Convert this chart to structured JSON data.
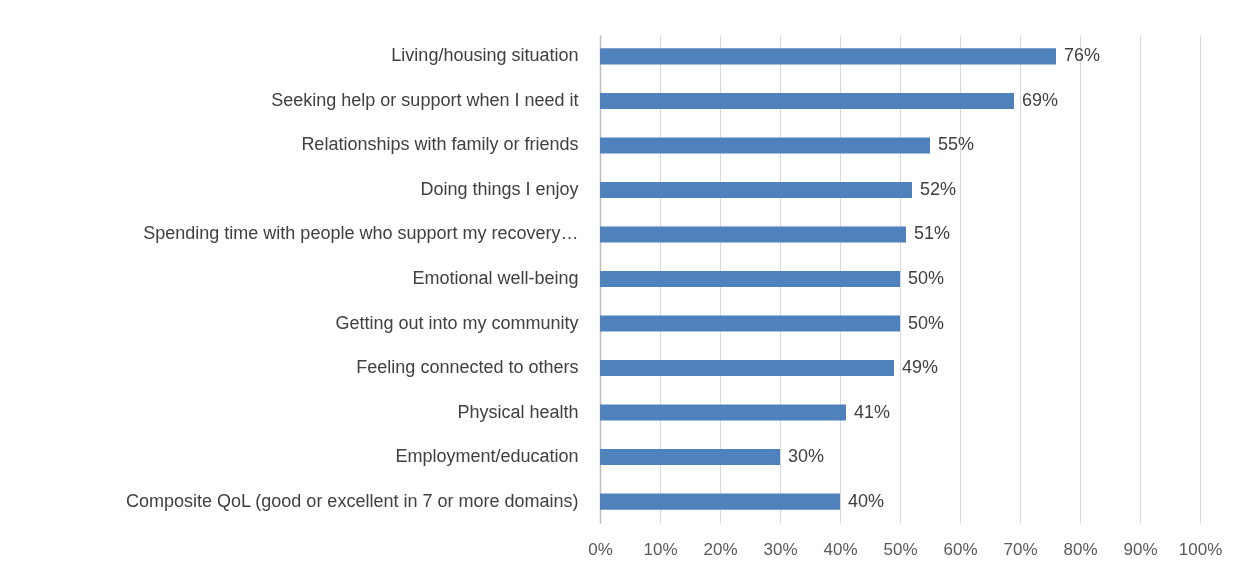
{
  "chart_data": {
    "type": "bar",
    "orientation": "horizontal",
    "categories": [
      "Living/housing situation",
      "Seeking help or support when I need it",
      "Relationships with family or friends",
      "Doing things I enjoy",
      "Spending time with people who support my recovery…",
      "Emotional well-being",
      "Getting out into my community",
      "Feeling connected to others",
      "Physical health",
      "Employment/education",
      "Composite QoL (good or excellent in 7 or more domains)"
    ],
    "values": [
      76,
      69,
      55,
      52,
      51,
      50,
      50,
      49,
      41,
      30,
      40
    ],
    "value_labels": [
      "76%",
      "69%",
      "55%",
      "52%",
      "51%",
      "50%",
      "50%",
      "49%",
      "41%",
      "30%",
      "40%"
    ],
    "color": "#4f81bd",
    "xlim": [
      0,
      100
    ],
    "xticks": [
      {
        "value": 0,
        "label": "0%"
      },
      {
        "value": 10,
        "label": "10%"
      },
      {
        "value": 20,
        "label": "20%"
      },
      {
        "value": 30,
        "label": "30%"
      },
      {
        "value": 40,
        "label": "40%"
      },
      {
        "value": 50,
        "label": "50%"
      },
      {
        "value": 60,
        "label": "60%"
      },
      {
        "value": 70,
        "label": "70%"
      },
      {
        "value": 80,
        "label": "80%"
      },
      {
        "value": 90,
        "label": "90%"
      },
      {
        "value": 100,
        "label": "100%"
      }
    ],
    "grid": "x"
  }
}
